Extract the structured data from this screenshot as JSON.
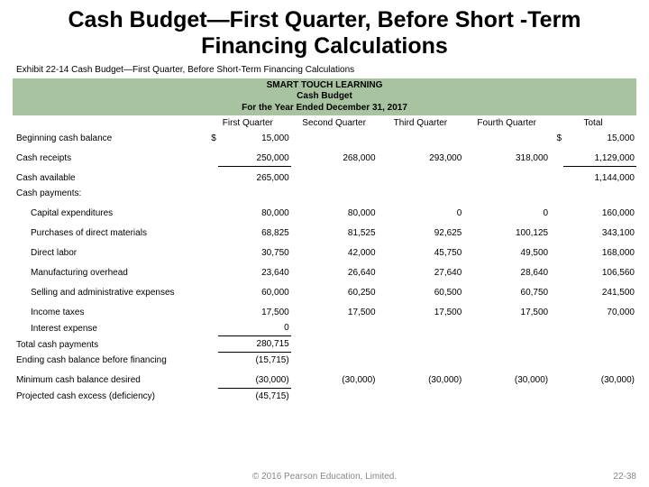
{
  "title": "Cash Budget—First Quarter, Before Short -Term Financing Calculations",
  "exhibit": "Exhibit 22-14  Cash Budget—First Quarter, Before Short-Term Financing Calculations",
  "header": {
    "company": "SMART TOUCH LEARNING",
    "report": "Cash Budget",
    "period": "For the Year Ended December 31, 2017"
  },
  "columns": [
    "First Quarter",
    "Second Quarter",
    "Third Quarter",
    "Fourth Quarter",
    "Total"
  ],
  "rows": {
    "begin_bal": {
      "label": "Beginning cash balance",
      "q1": "15,000",
      "q2": "",
      "q3": "",
      "q4": "",
      "total": "15,000",
      "cur": "$"
    },
    "receipts": {
      "label": "Cash receipts",
      "q1": "250,000",
      "q2": "268,000",
      "q3": "293,000",
      "q4": "318,000",
      "total": "1,129,000"
    },
    "available": {
      "label": "Cash available",
      "q1": "265,000",
      "q2": "",
      "q3": "",
      "q4": "",
      "total": "1,144,000"
    },
    "payments_hdr": {
      "label": "Cash payments:"
    },
    "capex": {
      "label": "Capital expenditures",
      "q1": "80,000",
      "q2": "80,000",
      "q3": "0",
      "q4": "0",
      "total": "160,000"
    },
    "materials": {
      "label": "Purchases of direct materials",
      "q1": "68,825",
      "q2": "81,525",
      "q3": "92,625",
      "q4": "100,125",
      "total": "343,100"
    },
    "labor": {
      "label": "Direct labor",
      "q1": "30,750",
      "q2": "42,000",
      "q3": "45,750",
      "q4": "49,500",
      "total": "168,000"
    },
    "overhead": {
      "label": "Manufacturing overhead",
      "q1": "23,640",
      "q2": "26,640",
      "q3": "27,640",
      "q4": "28,640",
      "total": "106,560"
    },
    "sga": {
      "label": "Selling and administrative expenses",
      "q1": "60,000",
      "q2": "60,250",
      "q3": "60,500",
      "q4": "60,750",
      "total": "241,500"
    },
    "taxes": {
      "label": "Income taxes",
      "q1": "17,500",
      "q2": "17,500",
      "q3": "17,500",
      "q4": "17,500",
      "total": "70,000"
    },
    "interest": {
      "label": "Interest expense",
      "q1": "0",
      "q2": "",
      "q3": "",
      "q4": "",
      "total": ""
    },
    "total_pay": {
      "label": "Total cash payments",
      "q1": "280,715",
      "q2": "",
      "q3": "",
      "q4": "",
      "total": ""
    },
    "end_bal": {
      "label": "Ending cash balance before financing",
      "q1": "(15,715)",
      "q2": "",
      "q3": "",
      "q4": "",
      "total": ""
    },
    "min_bal": {
      "label": "Minimum cash balance desired",
      "q1": "(30,000)",
      "q2": "(30,000)",
      "q3": "(30,000)",
      "q4": "(30,000)",
      "total": "(30,000)"
    },
    "excess": {
      "label": "Projected cash excess (deficiency)",
      "q1": "(45,715)",
      "q2": "",
      "q3": "",
      "q4": "",
      "total": ""
    }
  },
  "footer": "© 2016 Pearson Education, Limited.",
  "page": "22-38",
  "colors": {
    "band": "#a8c3a0"
  }
}
